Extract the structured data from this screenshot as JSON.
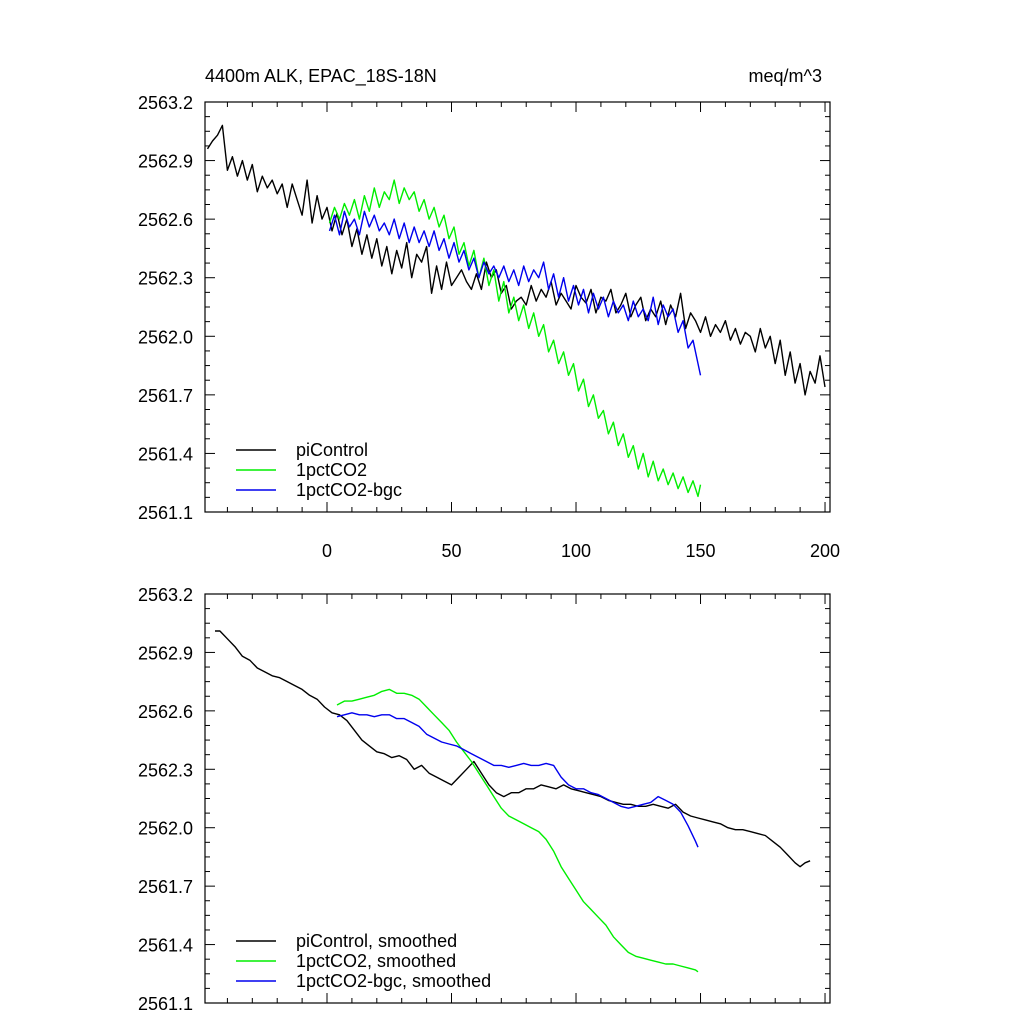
{
  "figure": {
    "title_left": "4400m ALK, EPAC_18S-18N",
    "title_right": "meq/m^3"
  },
  "chart_data": [
    {
      "type": "line",
      "title": "4400m ALK, EPAC_18S-18N",
      "units": "meq/m^3",
      "xlabel": "",
      "ylabel": "",
      "xlim": [
        -49,
        202
      ],
      "ylim": [
        2561.1,
        2563.2
      ],
      "xticks": [
        0,
        50,
        100,
        150,
        200
      ],
      "xtick_labels": [
        "0",
        "50",
        "100",
        "150",
        "200"
      ],
      "yticks": [
        2561.1,
        2561.4,
        2561.7,
        2562.0,
        2562.3,
        2562.6,
        2562.9,
        2563.2
      ],
      "ytick_labels": [
        "2561.1",
        "2561.4",
        "2561.7",
        "2562.0",
        "2562.3",
        "2562.6",
        "2562.9",
        "2563.2"
      ],
      "legend_location": "bottom-left",
      "series": [
        {
          "name": "piControl",
          "color": "#000000",
          "x": [
            -48,
            -46,
            -44,
            -42,
            -40,
            -38,
            -36,
            -34,
            -32,
            -30,
            -28,
            -26,
            -24,
            -22,
            -20,
            -18,
            -16,
            -14,
            -12,
            -10,
            -8,
            -6,
            -4,
            -2,
            0,
            2,
            4,
            6,
            8,
            10,
            12,
            14,
            16,
            18,
            20,
            22,
            24,
            26,
            28,
            30,
            32,
            34,
            36,
            38,
            40,
            42,
            44,
            46,
            48,
            50,
            52,
            54,
            56,
            58,
            60,
            62,
            64,
            66,
            68,
            70,
            72,
            74,
            76,
            78,
            80,
            82,
            84,
            86,
            88,
            90,
            92,
            94,
            96,
            98,
            100,
            102,
            104,
            106,
            108,
            110,
            112,
            114,
            116,
            118,
            120,
            122,
            124,
            126,
            128,
            130,
            132,
            134,
            136,
            138,
            140,
            142,
            144,
            146,
            148,
            150,
            152,
            154,
            156,
            158,
            160,
            162,
            164,
            166,
            168,
            170,
            172,
            174,
            176,
            178,
            180,
            182,
            184,
            186,
            188,
            190,
            192,
            194,
            196,
            198,
            200
          ],
          "values": [
            2562.96,
            2563.0,
            2563.03,
            2563.08,
            2562.85,
            2562.92,
            2562.82,
            2562.9,
            2562.8,
            2562.88,
            2562.74,
            2562.82,
            2562.76,
            2562.8,
            2562.73,
            2562.78,
            2562.66,
            2562.78,
            2562.7,
            2562.62,
            2562.8,
            2562.58,
            2562.72,
            2562.6,
            2562.66,
            2562.54,
            2562.63,
            2562.52,
            2562.6,
            2562.46,
            2562.55,
            2562.42,
            2562.52,
            2562.4,
            2562.5,
            2562.36,
            2562.46,
            2562.32,
            2562.44,
            2562.35,
            2562.48,
            2562.3,
            2562.42,
            2562.38,
            2562.46,
            2562.22,
            2562.36,
            2562.24,
            2562.38,
            2562.26,
            2562.3,
            2562.34,
            2562.28,
            2562.24,
            2562.32,
            2562.24,
            2562.38,
            2562.3,
            2562.34,
            2562.22,
            2562.26,
            2562.14,
            2562.18,
            2562.2,
            2562.16,
            2562.26,
            2562.18,
            2562.24,
            2562.2,
            2562.28,
            2562.16,
            2562.22,
            2562.18,
            2562.14,
            2562.26,
            2562.2,
            2562.17,
            2562.24,
            2562.12,
            2562.2,
            2562.18,
            2562.24,
            2562.12,
            2562.16,
            2562.22,
            2562.1,
            2562.16,
            2562.2,
            2562.08,
            2562.14,
            2562.1,
            2562.18,
            2562.06,
            2562.16,
            2562.1,
            2562.22,
            2562.04,
            2562.12,
            2562.08,
            2562.02,
            2562.1,
            2562.0,
            2562.06,
            2562.02,
            2562.08,
            2561.98,
            2562.04,
            2561.96,
            2562.02,
            2562.0,
            2561.92,
            2562.04,
            2561.94,
            2562.0,
            2561.86,
            2561.98,
            2561.8,
            2561.92,
            2561.76,
            2561.86,
            2561.7,
            2561.82,
            2561.76,
            2561.9,
            2561.74
          ]
        },
        {
          "name": "1pctCO2",
          "color": "#00ee00",
          "x": [
            1,
            3,
            5,
            7,
            9,
            11,
            13,
            15,
            17,
            19,
            21,
            23,
            25,
            27,
            29,
            31,
            33,
            35,
            37,
            39,
            41,
            43,
            45,
            47,
            49,
            51,
            53,
            55,
            57,
            59,
            61,
            63,
            65,
            67,
            69,
            71,
            73,
            75,
            77,
            79,
            81,
            83,
            85,
            87,
            89,
            91,
            93,
            95,
            97,
            99,
            101,
            103,
            105,
            107,
            109,
            111,
            113,
            115,
            117,
            119,
            121,
            123,
            125,
            127,
            129,
            131,
            133,
            135,
            137,
            139,
            141,
            143,
            145,
            147,
            149,
            150
          ],
          "values": [
            2562.58,
            2562.66,
            2562.6,
            2562.68,
            2562.62,
            2562.7,
            2562.6,
            2562.72,
            2562.64,
            2562.76,
            2562.66,
            2562.74,
            2562.7,
            2562.8,
            2562.68,
            2562.76,
            2562.7,
            2562.74,
            2562.64,
            2562.7,
            2562.6,
            2562.66,
            2562.56,
            2562.62,
            2562.5,
            2562.56,
            2562.42,
            2562.48,
            2562.36,
            2562.44,
            2562.3,
            2562.4,
            2562.26,
            2562.34,
            2562.18,
            2562.28,
            2562.12,
            2562.2,
            2562.08,
            2562.16,
            2562.04,
            2562.12,
            2562.0,
            2562.06,
            2561.92,
            2561.98,
            2561.86,
            2561.92,
            2561.8,
            2561.86,
            2561.72,
            2561.78,
            2561.64,
            2561.7,
            2561.58,
            2561.62,
            2561.5,
            2561.56,
            2561.44,
            2561.5,
            2561.38,
            2561.44,
            2561.32,
            2561.4,
            2561.28,
            2561.36,
            2561.26,
            2561.32,
            2561.24,
            2561.3,
            2561.22,
            2561.28,
            2561.2,
            2561.26,
            2561.18,
            2561.24
          ]
        },
        {
          "name": "1pctCO2-bgc",
          "color": "#0000ee",
          "x": [
            1,
            3,
            5,
            7,
            9,
            11,
            13,
            15,
            17,
            19,
            21,
            23,
            25,
            27,
            29,
            31,
            33,
            35,
            37,
            39,
            41,
            43,
            45,
            47,
            49,
            51,
            53,
            55,
            57,
            59,
            61,
            63,
            65,
            67,
            69,
            71,
            73,
            75,
            77,
            79,
            81,
            83,
            85,
            87,
            89,
            91,
            93,
            95,
            97,
            99,
            101,
            103,
            105,
            107,
            109,
            111,
            113,
            115,
            117,
            119,
            121,
            123,
            125,
            127,
            129,
            131,
            133,
            135,
            137,
            139,
            141,
            143,
            145,
            147,
            149,
            150
          ],
          "values": [
            2562.54,
            2562.62,
            2562.52,
            2562.64,
            2562.56,
            2562.6,
            2562.52,
            2562.64,
            2562.56,
            2562.62,
            2562.54,
            2562.58,
            2562.52,
            2562.6,
            2562.5,
            2562.58,
            2562.48,
            2562.56,
            2562.48,
            2562.54,
            2562.46,
            2562.54,
            2562.44,
            2562.5,
            2562.4,
            2562.48,
            2562.38,
            2562.44,
            2562.34,
            2562.4,
            2562.3,
            2562.38,
            2562.32,
            2562.36,
            2562.3,
            2562.36,
            2562.28,
            2562.34,
            2562.26,
            2562.36,
            2562.28,
            2562.34,
            2562.3,
            2562.38,
            2562.24,
            2562.32,
            2562.2,
            2562.3,
            2562.18,
            2562.26,
            2562.16,
            2562.24,
            2562.12,
            2562.22,
            2562.14,
            2562.2,
            2562.1,
            2562.18,
            2562.12,
            2562.16,
            2562.08,
            2562.18,
            2562.1,
            2562.14,
            2562.08,
            2562.2,
            2562.06,
            2562.16,
            2562.1,
            2562.14,
            2562.02,
            2562.08,
            2561.94,
            2561.98,
            2561.86,
            2561.8
          ]
        }
      ]
    },
    {
      "type": "line",
      "title": "",
      "xlabel": "",
      "ylabel": "",
      "xlim": [
        -49,
        202
      ],
      "ylim": [
        2561.1,
        2563.2
      ],
      "xticks": [
        0,
        50,
        100,
        150,
        200
      ],
      "xtick_labels": [],
      "yticks": [
        2561.1,
        2561.4,
        2561.7,
        2562.0,
        2562.3,
        2562.6,
        2562.9,
        2563.2
      ],
      "ytick_labels": [
        "2561.1",
        "2561.4",
        "2561.7",
        "2562.0",
        "2562.3",
        "2562.6",
        "2562.9",
        "2563.2"
      ],
      "legend_location": "bottom-left",
      "series": [
        {
          "name": "piControl, smoothed",
          "color": "#000000",
          "x": [
            -45,
            -43,
            -40,
            -37,
            -34,
            -31,
            -28,
            -25,
            -22,
            -19,
            -16,
            -13,
            -10,
            -7,
            -4,
            -1,
            2,
            5,
            8,
            11,
            14,
            17,
            20,
            23,
            26,
            29,
            32,
            35,
            38,
            41,
            44,
            47,
            50,
            53,
            56,
            59,
            62,
            65,
            68,
            71,
            74,
            77,
            80,
            83,
            86,
            89,
            92,
            95,
            98,
            101,
            104,
            107,
            110,
            113,
            116,
            119,
            122,
            125,
            128,
            131,
            134,
            137,
            140,
            143,
            146,
            149,
            152,
            155,
            158,
            161,
            164,
            167,
            170,
            173,
            176,
            179,
            182,
            185,
            188,
            190,
            192,
            194
          ],
          "values": [
            2563.01,
            2563.01,
            2562.97,
            2562.93,
            2562.88,
            2562.86,
            2562.82,
            2562.8,
            2562.78,
            2562.77,
            2562.75,
            2562.73,
            2562.71,
            2562.68,
            2562.66,
            2562.62,
            2562.59,
            2562.58,
            2562.55,
            2562.5,
            2562.45,
            2562.42,
            2562.39,
            2562.38,
            2562.36,
            2562.37,
            2562.35,
            2562.3,
            2562.32,
            2562.28,
            2562.26,
            2562.24,
            2562.22,
            2562.26,
            2562.3,
            2562.34,
            2562.28,
            2562.22,
            2562.18,
            2562.16,
            2562.18,
            2562.18,
            2562.2,
            2562.2,
            2562.22,
            2562.21,
            2562.2,
            2562.22,
            2562.2,
            2562.19,
            2562.18,
            2562.17,
            2562.16,
            2562.14,
            2562.13,
            2562.12,
            2562.12,
            2562.11,
            2562.11,
            2562.12,
            2562.11,
            2562.1,
            2562.12,
            2562.08,
            2562.06,
            2562.05,
            2562.04,
            2562.03,
            2562.02,
            2562.0,
            2561.99,
            2561.99,
            2561.98,
            2561.97,
            2561.96,
            2561.93,
            2561.9,
            2561.86,
            2561.82,
            2561.8,
            2561.82,
            2561.83
          ]
        },
        {
          "name": "1pctCO2, smoothed",
          "color": "#00ee00",
          "x": [
            4,
            7,
            10,
            13,
            16,
            19,
            22,
            25,
            28,
            31,
            34,
            37,
            40,
            43,
            46,
            49,
            52,
            55,
            58,
            61,
            64,
            67,
            70,
            73,
            76,
            79,
            82,
            85,
            88,
            91,
            94,
            97,
            100,
            103,
            106,
            109,
            112,
            115,
            118,
            121,
            124,
            127,
            130,
            133,
            136,
            139,
            142,
            145,
            148,
            149
          ],
          "values": [
            2562.63,
            2562.65,
            2562.65,
            2562.66,
            2562.67,
            2562.68,
            2562.7,
            2562.71,
            2562.69,
            2562.69,
            2562.68,
            2562.66,
            2562.62,
            2562.58,
            2562.54,
            2562.5,
            2562.44,
            2562.39,
            2562.34,
            2562.28,
            2562.22,
            2562.16,
            2562.1,
            2562.06,
            2562.04,
            2562.02,
            2562.0,
            2561.98,
            2561.94,
            2561.88,
            2561.8,
            2561.74,
            2561.68,
            2561.62,
            2561.58,
            2561.54,
            2561.5,
            2561.44,
            2561.4,
            2561.36,
            2561.34,
            2561.33,
            2561.32,
            2561.31,
            2561.3,
            2561.3,
            2561.29,
            2561.28,
            2561.27,
            2561.26
          ]
        },
        {
          "name": "1pctCO2-bgc, smoothed",
          "color": "#0000ee",
          "x": [
            4,
            7,
            10,
            13,
            16,
            19,
            22,
            25,
            28,
            31,
            34,
            37,
            40,
            43,
            46,
            49,
            52,
            55,
            58,
            61,
            64,
            67,
            70,
            73,
            76,
            79,
            82,
            85,
            88,
            91,
            94,
            97,
            100,
            103,
            106,
            109,
            112,
            115,
            118,
            121,
            124,
            127,
            130,
            133,
            136,
            139,
            142,
            145,
            148,
            149
          ],
          "values": [
            2562.57,
            2562.58,
            2562.59,
            2562.58,
            2562.58,
            2562.57,
            2562.58,
            2562.58,
            2562.56,
            2562.56,
            2562.54,
            2562.52,
            2562.48,
            2562.46,
            2562.44,
            2562.43,
            2562.42,
            2562.4,
            2562.38,
            2562.36,
            2562.34,
            2562.32,
            2562.32,
            2562.31,
            2562.32,
            2562.33,
            2562.32,
            2562.32,
            2562.33,
            2562.32,
            2562.26,
            2562.22,
            2562.2,
            2562.2,
            2562.18,
            2562.17,
            2562.15,
            2562.13,
            2562.11,
            2562.1,
            2562.11,
            2562.12,
            2562.13,
            2562.16,
            2562.14,
            2562.12,
            2562.08,
            2562.01,
            2561.93,
            2561.9
          ]
        }
      ]
    }
  ]
}
